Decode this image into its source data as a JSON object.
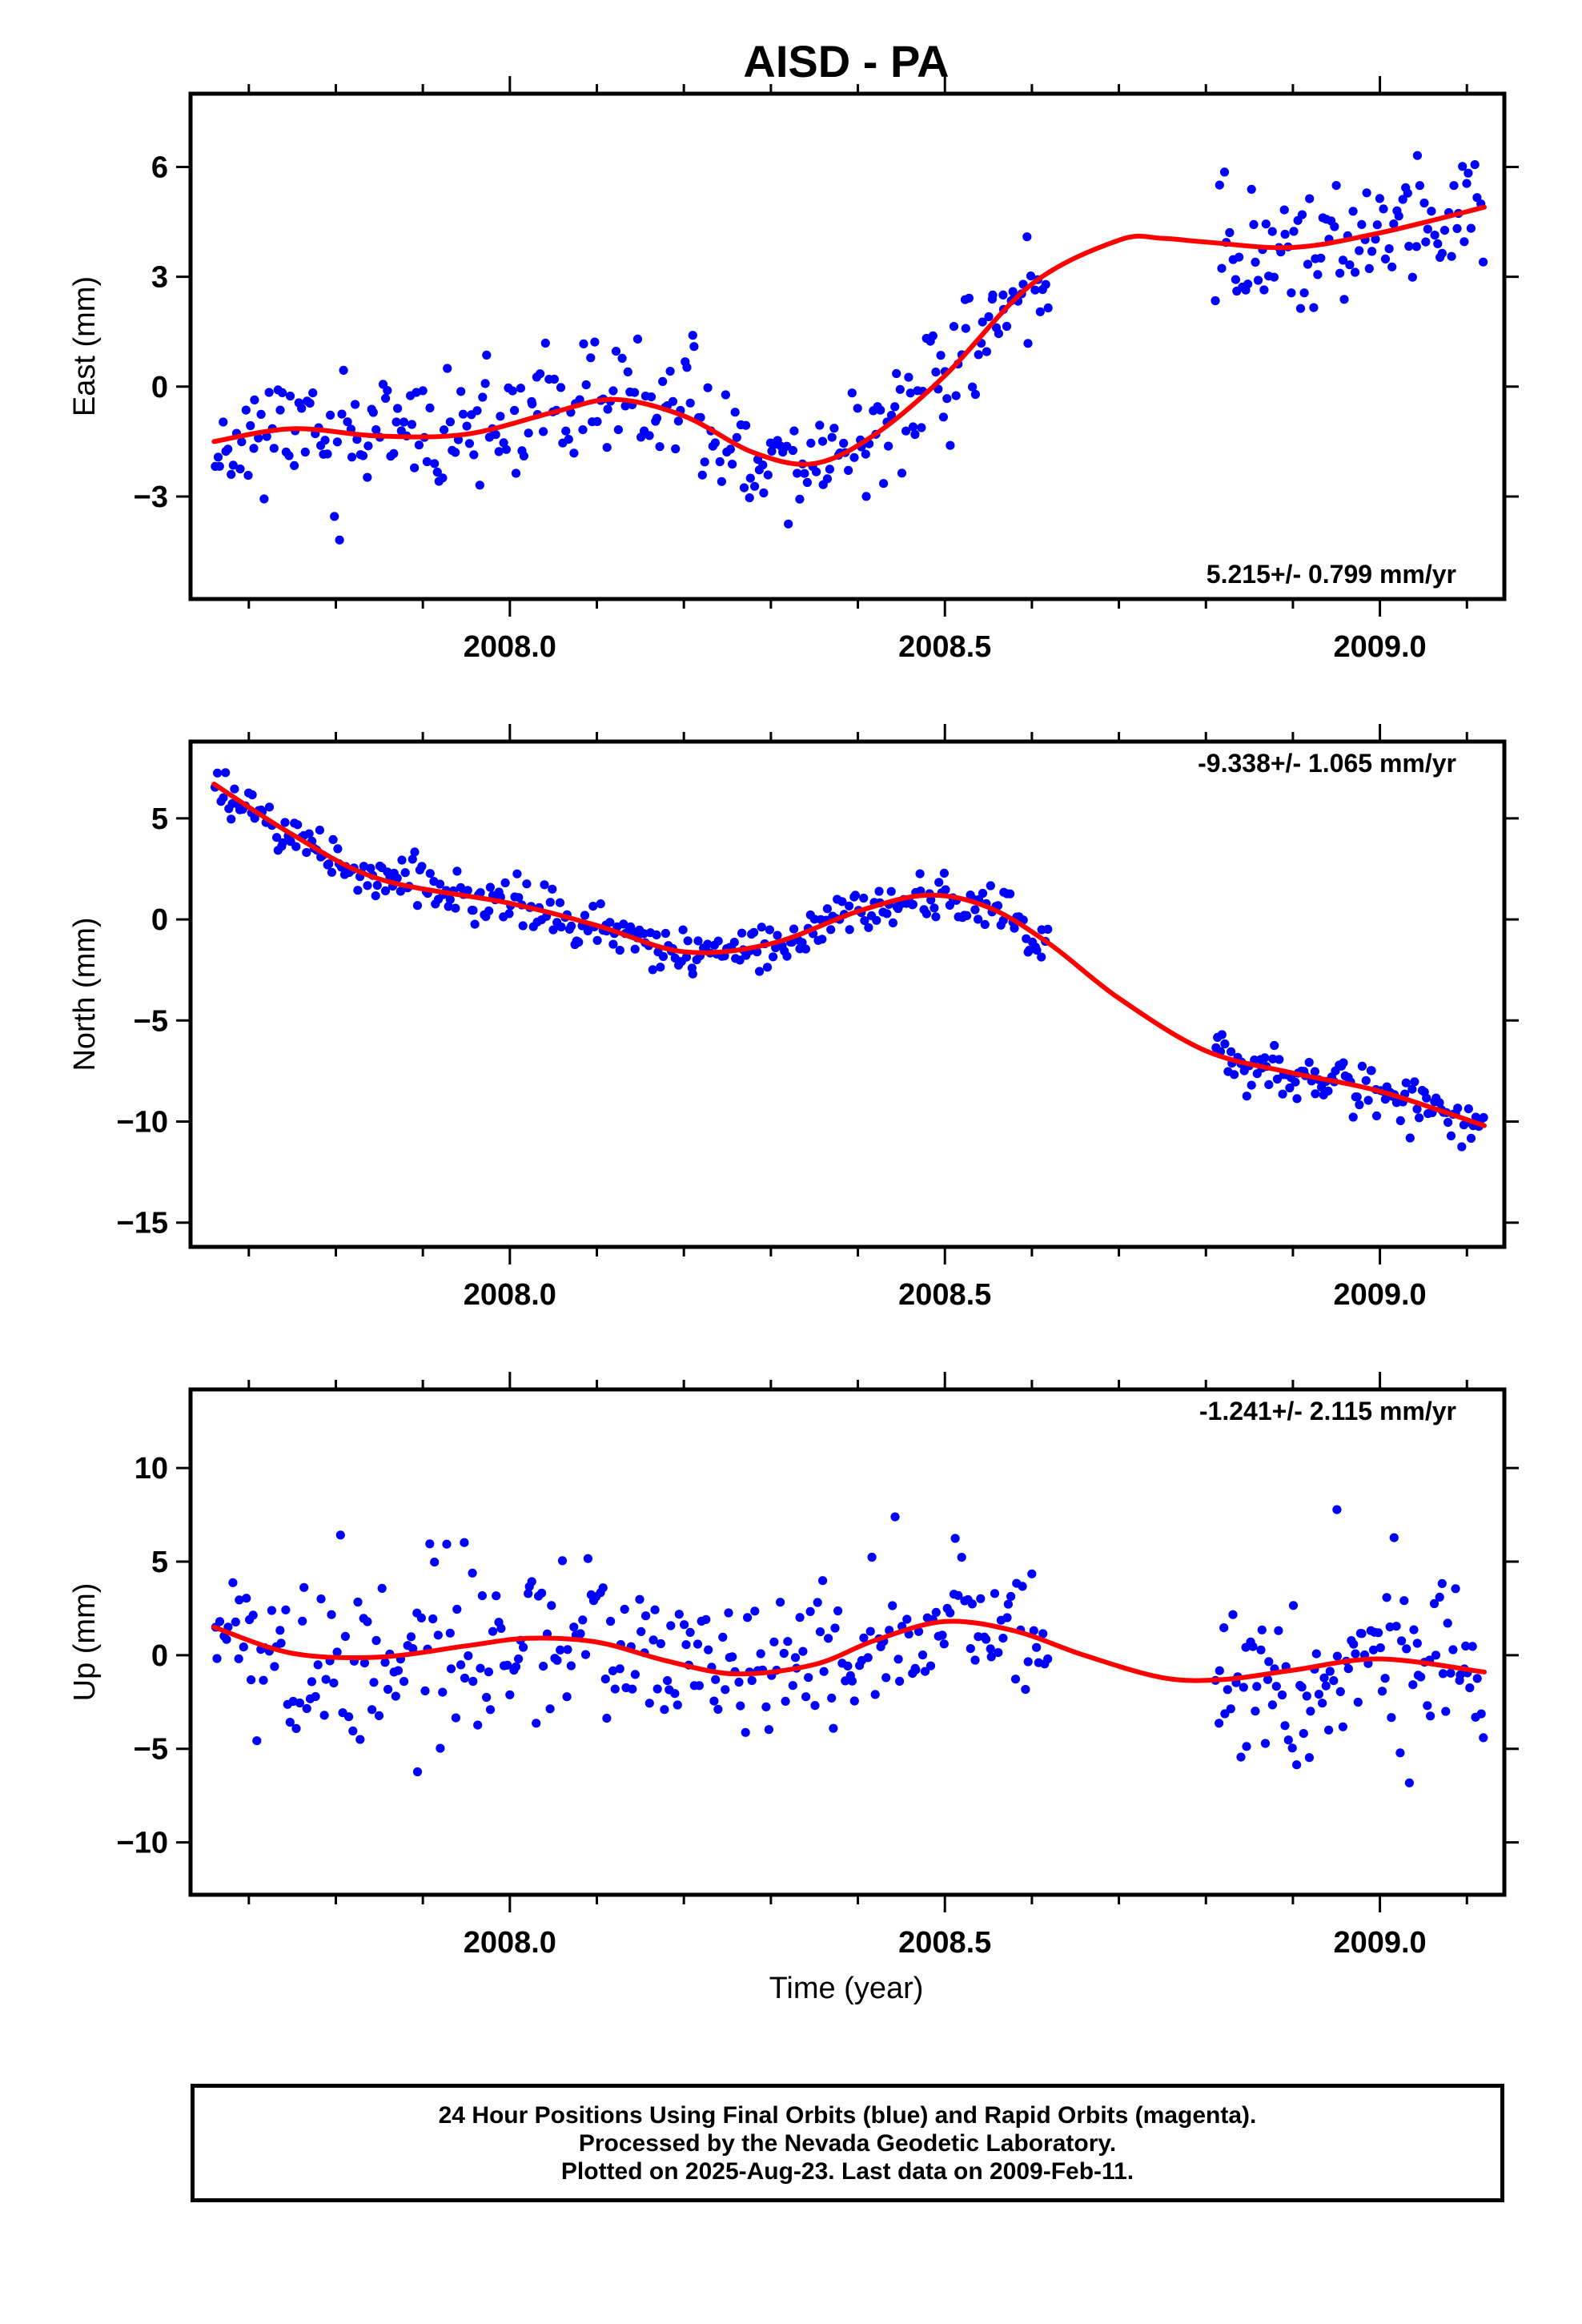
{
  "title": "AISD - PA",
  "xlabel": "Time (year)",
  "colors": {
    "points": "#0000ff",
    "fit": "#ff0000",
    "frame": "#000000"
  },
  "footer": {
    "line1": "24 Hour Positions Using Final Orbits (blue) and Rapid Orbits (magenta).",
    "line2": "Processed by the Nevada Geodetic Laboratory.",
    "line3": "Plotted on 2025-Aug-23. Last data on 2009-Feb-11."
  },
  "chart_data": [
    {
      "type": "scatter",
      "ylabel": "East (mm)",
      "rate_label": "5.215+/- 0.799 mm/yr",
      "xlim": [
        2007.633,
        2009.143
      ],
      "ylim": [
        -5.8,
        8
      ],
      "xticks": [
        2008.0,
        2008.5,
        2009.0
      ],
      "xtick_labels": [
        "2008.0",
        "2008.5",
        "2009.0"
      ],
      "yticks": [
        -3,
        0,
        3,
        6
      ],
      "ytick_labels": [
        "−3",
        "0",
        "3",
        "6"
      ],
      "fit": {
        "x": [
          2007.66,
          2007.75,
          2007.85,
          2007.95,
          2008.05,
          2008.12,
          2008.2,
          2008.28,
          2008.35,
          2008.42,
          2008.5,
          2008.6,
          2008.7,
          2008.75,
          2008.8,
          2008.9,
          2009.0,
          2009.12
        ],
        "y": [
          -1.5,
          -1.15,
          -1.35,
          -1.3,
          -0.7,
          -0.35,
          -0.8,
          -1.8,
          -2.1,
          -1.3,
          0.3,
          2.8,
          4.0,
          4.05,
          3.95,
          3.8,
          4.2,
          4.9
        ]
      },
      "segments": [
        {
          "x0": 2007.66,
          "x1": 2008.62,
          "knots": [
            [
              2007.66,
              -1.5
            ],
            [
              2007.75,
              -1.15
            ],
            [
              2007.85,
              -1.35
            ],
            [
              2007.95,
              -1.3
            ],
            [
              2008.05,
              -0.7
            ],
            [
              2008.12,
              -0.35
            ],
            [
              2008.2,
              -0.8
            ],
            [
              2008.28,
              -1.8
            ],
            [
              2008.35,
              -2.1
            ],
            [
              2008.42,
              -1.3
            ],
            [
              2008.5,
              0.3
            ],
            [
              2008.62,
              3.1
            ]
          ],
          "spread": 1.25,
          "n": 310,
          "seed": 11
        },
        {
          "x0": 2008.81,
          "x1": 2009.12,
          "knots": [
            [
              2008.81,
              3.95
            ],
            [
              2008.9,
              3.8
            ],
            [
              2009.0,
              4.2
            ],
            [
              2009.12,
              4.9
            ]
          ],
          "spread": 1.3,
          "n": 100,
          "seed": 12
        }
      ]
    },
    {
      "type": "scatter",
      "ylabel": "North (mm)",
      "rate_label": "-9.338+/- 1.065 mm/yr",
      "xlim": [
        2007.633,
        2009.143
      ],
      "ylim": [
        -16.2,
        8.8
      ],
      "xticks": [
        2008.0,
        2008.5,
        2009.0
      ],
      "xtick_labels": [
        "2008.0",
        "2008.5",
        "2009.0"
      ],
      "yticks": [
        -15,
        -10,
        -5,
        0,
        5
      ],
      "ytick_labels": [
        "−15",
        "−10",
        "−5",
        "0",
        "5"
      ],
      "fit": {
        "x": [
          2007.66,
          2007.75,
          2007.85,
          2008.0,
          2008.1,
          2008.2,
          2008.3,
          2008.4,
          2008.48,
          2008.55,
          2008.62,
          2008.7,
          2008.8,
          2008.9,
          2009.0,
          2009.12
        ],
        "y": [
          6.7,
          4.2,
          2.0,
          0.8,
          -0.3,
          -1.6,
          -1.2,
          0.4,
          1.2,
          0.6,
          -1.2,
          -3.9,
          -6.5,
          -7.6,
          -8.5,
          -10.2
        ]
      },
      "segments": [
        {
          "x0": 2007.66,
          "x1": 2008.62,
          "knots": [
            [
              2007.66,
              6.7
            ],
            [
              2007.75,
              4.2
            ],
            [
              2007.85,
              2.0
            ],
            [
              2008.0,
              0.8
            ],
            [
              2008.1,
              -0.3
            ],
            [
              2008.2,
              -1.6
            ],
            [
              2008.3,
              -1.2
            ],
            [
              2008.4,
              0.4
            ],
            [
              2008.48,
              1.2
            ],
            [
              2008.55,
              0.6
            ],
            [
              2008.62,
              -1.2
            ]
          ],
          "spread": 0.95,
          "n": 330,
          "seed": 21
        },
        {
          "x0": 2008.81,
          "x1": 2009.12,
          "knots": [
            [
              2008.81,
              -6.5
            ],
            [
              2008.9,
              -7.6
            ],
            [
              2009.0,
              -8.5
            ],
            [
              2009.12,
              -10.2
            ]
          ],
          "spread": 0.95,
          "n": 110,
          "seed": 22
        }
      ]
    },
    {
      "type": "scatter",
      "ylabel": "Up (mm)",
      "rate_label": "-1.241+/- 2.115 mm/yr",
      "xlim": [
        2007.633,
        2009.143
      ],
      "ylim": [
        -12.8,
        14.2
      ],
      "xticks": [
        2008.0,
        2008.5,
        2009.0
      ],
      "xtick_labels": [
        "2008.0",
        "2008.5",
        "2009.0"
      ],
      "yticks": [
        -10,
        -5,
        0,
        5,
        10
      ],
      "ytick_labels": [
        "−10",
        "−5",
        "0",
        "5",
        "10"
      ],
      "fit": {
        "x": [
          2007.66,
          2007.75,
          2007.85,
          2007.95,
          2008.02,
          2008.1,
          2008.18,
          2008.26,
          2008.35,
          2008.42,
          2008.5,
          2008.58,
          2008.66,
          2008.75,
          2008.82,
          2008.9,
          2009.0,
          2009.12
        ],
        "y": [
          1.5,
          0.1,
          -0.1,
          0.5,
          0.9,
          0.7,
          -0.3,
          -1.0,
          -0.5,
          0.8,
          1.8,
          1.3,
          0.0,
          -1.2,
          -1.3,
          -0.8,
          -0.2,
          -0.9
        ]
      },
      "segments": [
        {
          "x0": 2007.66,
          "x1": 2008.62,
          "knots": [
            [
              2007.66,
              1.5
            ],
            [
              2007.75,
              0.1
            ],
            [
              2007.85,
              -0.1
            ],
            [
              2007.95,
              0.5
            ],
            [
              2008.02,
              0.9
            ],
            [
              2008.1,
              0.7
            ],
            [
              2008.18,
              -0.3
            ],
            [
              2008.26,
              -1.0
            ],
            [
              2008.35,
              -0.5
            ],
            [
              2008.42,
              0.8
            ],
            [
              2008.5,
              1.8
            ],
            [
              2008.58,
              1.3
            ],
            [
              2008.62,
              0.9
            ]
          ],
          "spread": 3.6,
          "n": 300,
          "seed": 31
        },
        {
          "x0": 2008.81,
          "x1": 2009.12,
          "knots": [
            [
              2008.81,
              -1.3
            ],
            [
              2008.9,
              -0.8
            ],
            [
              2009.0,
              -0.2
            ],
            [
              2009.12,
              -0.9
            ]
          ],
          "spread": 3.6,
          "n": 110,
          "seed": 32
        }
      ]
    }
  ]
}
